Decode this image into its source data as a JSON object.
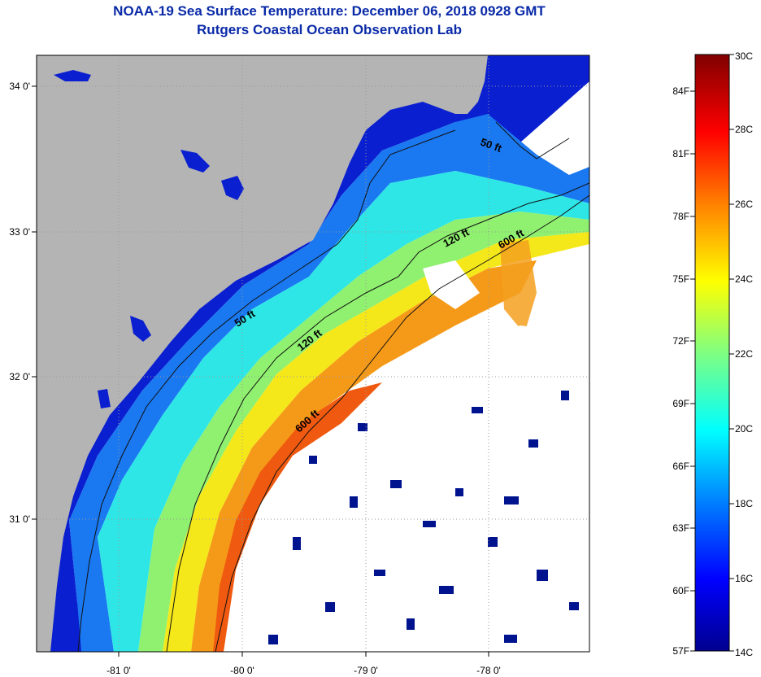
{
  "title": "NOAA-19 Sea Surface Temperature:  December 06, 2018 0928 GMT",
  "subtitle": "Rutgers Coastal Ocean Observation Lab",
  "map": {
    "x_ticks": [
      "-81 0'",
      "-80 0'",
      "-79 0'",
      "-78 0'"
    ],
    "y_ticks": [
      "34 0'",
      "33 0'",
      "32 0'",
      "31 0'"
    ],
    "depth_labels": [
      "50 ft",
      "120 ft",
      "600 ft",
      "50 ft",
      "120 ft",
      "600 ft"
    ]
  },
  "colorbar": {
    "fahrenheit": [
      "84F",
      "81F",
      "78F",
      "75F",
      "72F",
      "69F",
      "66F",
      "63F",
      "60F",
      "57F"
    ],
    "celsius": [
      "30C",
      "28C",
      "26C",
      "24C",
      "22C",
      "20C",
      "18C",
      "16C",
      "14C"
    ]
  },
  "colors": {
    "title": "#0a2aa8",
    "land": "#b4b4b4",
    "cloud": "#ffffff"
  }
}
